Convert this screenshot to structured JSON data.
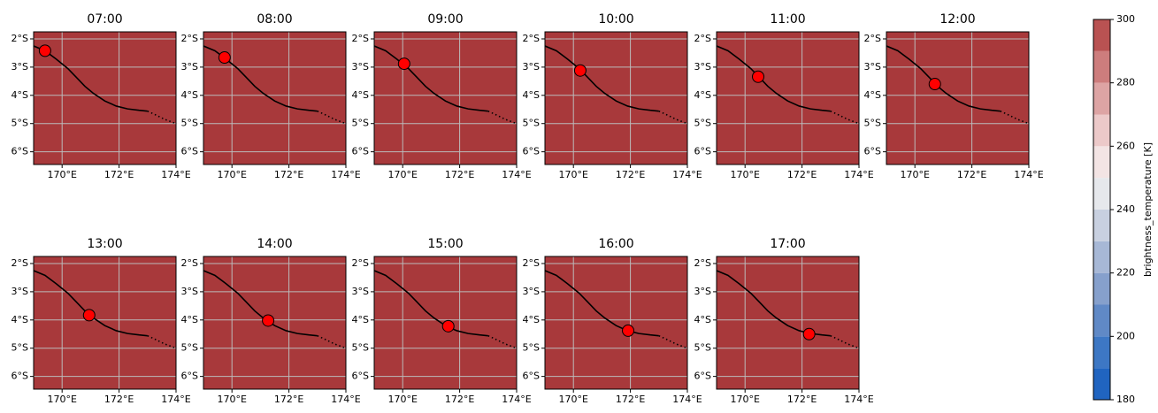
{
  "chart_data": {
    "type": "map",
    "panels": [
      {
        "title": "07:00",
        "x": 169.4,
        "y": -2.42
      },
      {
        "title": "08:00",
        "x": 169.74,
        "y": -2.66
      },
      {
        "title": "09:00",
        "x": 170.05,
        "y": -2.88
      },
      {
        "title": "10:00",
        "x": 170.24,
        "y": -3.12
      },
      {
        "title": "11:00",
        "x": 170.46,
        "y": -3.34
      },
      {
        "title": "12:00",
        "x": 170.7,
        "y": -3.6
      },
      {
        "title": "13:00",
        "x": 170.95,
        "y": -3.83
      },
      {
        "title": "14:00",
        "x": 171.27,
        "y": -4.02
      },
      {
        "title": "15:00",
        "x": 171.6,
        "y": -4.22
      },
      {
        "title": "16:00",
        "x": 171.92,
        "y": -4.38
      },
      {
        "title": "17:00",
        "x": 172.25,
        "y": -4.5
      }
    ],
    "track": {
      "x": [
        169,
        169.4,
        169.8,
        170.2,
        170.5,
        170.8,
        171.1,
        171.5,
        171.9,
        172.3,
        172.7,
        173.0
      ],
      "y": [
        -2.25,
        -2.42,
        -2.72,
        -3.05,
        -3.36,
        -3.68,
        -3.93,
        -4.2,
        -4.38,
        -4.48,
        -4.53,
        -4.56
      ]
    },
    "forecast_track": {
      "x": [
        173.0,
        173.3,
        173.6,
        174.0
      ],
      "y": [
        -4.56,
        -4.7,
        -4.85,
        -5.0
      ]
    },
    "xlim": [
      169,
      174
    ],
    "ylim": [
      -6.45,
      -1.75
    ],
    "xticks": [
      {
        "value": 170,
        "label": "170°E"
      },
      {
        "value": 172,
        "label": "172°E"
      },
      {
        "value": 174,
        "label": "174°E"
      }
    ],
    "yticks": [
      {
        "value": -2,
        "label": "2°S"
      },
      {
        "value": -3,
        "label": "3°S"
      },
      {
        "value": -4,
        "label": "4°S"
      },
      {
        "value": -5,
        "label": "5°S"
      },
      {
        "value": -6,
        "label": "6°S"
      }
    ],
    "grid": true,
    "background_color": "#a8393b",
    "marker_color": "#ff0000",
    "track_color": "#000000",
    "colorbar": {
      "label": "brightness_temperature [K]",
      "ylim": [
        180,
        300
      ],
      "yticks": [
        180,
        200,
        220,
        240,
        260,
        280,
        300
      ],
      "levels": [
        180,
        190,
        200,
        210,
        220,
        230,
        240,
        250,
        260,
        270,
        280,
        290,
        300
      ],
      "colors": [
        "#2064c0",
        "#3d77c4",
        "#6089c6",
        "#86a0cc",
        "#a7b8d6",
        "#c8d0e0",
        "#e6e8ec",
        "#f3e4e4",
        "#ecc9c9",
        "#dda4a4",
        "#cd7d7d",
        "#b95252"
      ]
    }
  }
}
